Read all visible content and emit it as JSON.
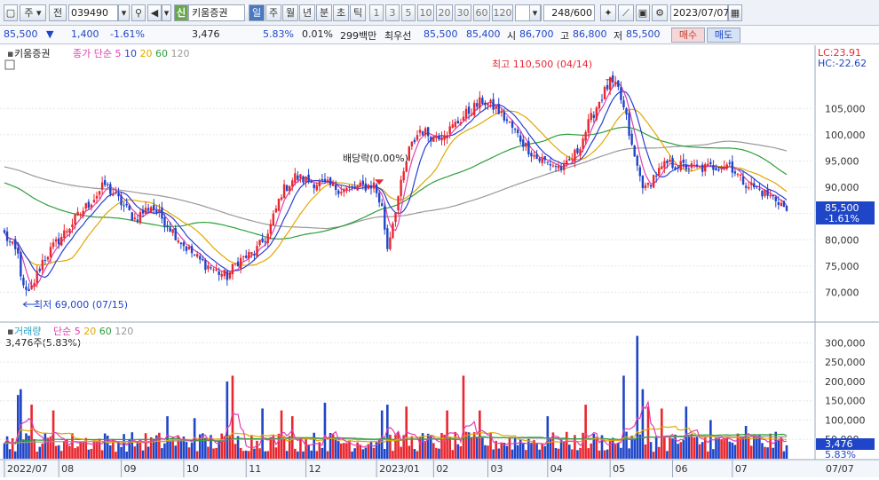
{
  "toolbar": {
    "market": "주",
    "prev_label": "전",
    "code": "039490",
    "badge": "신",
    "name": "키움증권",
    "period_tabs": [
      "일",
      "주",
      "월",
      "년",
      "분",
      "초",
      "틱"
    ],
    "active_tab": "일",
    "intervals": [
      "1",
      "3",
      "5",
      "10",
      "20",
      "30",
      "60",
      "120"
    ],
    "count": "248",
    "count_total": "/600",
    "date": "2023/07/07"
  },
  "quote": {
    "price": "85,500",
    "change_arrow": "▼",
    "change": "1,400",
    "change_pct": "-1.61%",
    "volume": "3,476",
    "vol_ratio": "5.83%",
    "turnover": "0.01%",
    "amount": "299백만",
    "best_label": "최우선",
    "best_ask": "85,500",
    "best_bid": "85,400",
    "open_label": "시",
    "open": "86,700",
    "high_label": "고",
    "high": "86,800",
    "low_label": "저",
    "low": "85,500",
    "buy_button": "매수",
    "sell_button": "매도"
  },
  "colors": {
    "up": "#e8272f",
    "down": "#1f45c8",
    "ma5": "#e040b0",
    "ma10": "#2a3fd0",
    "ma20": "#e0a800",
    "ma60": "#2e9e3a",
    "ma120": "#999999"
  },
  "price_panel": {
    "title": "키움증권",
    "legend": [
      {
        "text": "종가",
        "color": "#e040b0"
      },
      {
        "text": "단순",
        "color": "#e040b0"
      },
      {
        "text": "5",
        "color": "#e040b0"
      },
      {
        "text": "10",
        "color": "#2a3fd0"
      },
      {
        "text": "20",
        "color": "#e0a800"
      },
      {
        "text": "60",
        "color": "#2e9e3a"
      },
      {
        "text": "120",
        "color": "#999999"
      }
    ],
    "lc": "LC:23.91",
    "hc": "HC:-22.62",
    "high_annotation": "최고 110,500 (04/14)",
    "low_annotation": "최저 69,000 (07/15)",
    "dividend_annotation": "배당락(0.00%)",
    "current_price_tag": "85,500",
    "current_change_tag": "-1.61%"
  },
  "volume_panel": {
    "title": "거래량",
    "legend": [
      {
        "text": "단순",
        "color": "#e040b0"
      },
      {
        "text": "5",
        "color": "#e040b0"
      },
      {
        "text": "20",
        "color": "#e0a800"
      },
      {
        "text": "60",
        "color": "#2e9e3a"
      },
      {
        "text": "120",
        "color": "#999999"
      }
    ],
    "current": "3,476주(5.83%)",
    "current_tag": "3,476",
    "pct_tag": "5.83%"
  },
  "chart_data": [
    {
      "type": "candlestick",
      "title": "키움증권",
      "ylim": [
        65000,
        113000
      ],
      "y_ticks": [
        70000,
        75000,
        80000,
        85000,
        90000,
        95000,
        100000,
        105000
      ],
      "y_tick_labels": [
        "70,000",
        "75,000",
        "80,000",
        "85,000",
        "90,000",
        "95,000",
        "100,000",
        "105,000"
      ],
      "x_labels": [
        "2022/07",
        "08",
        "09",
        "10",
        "11",
        "12",
        "2023/01",
        "02",
        "03",
        "04",
        "05",
        "06",
        "07",
        "07/07"
      ],
      "close_path": [
        [
          0,
          81000
        ],
        [
          5,
          77000
        ],
        [
          7,
          70500
        ],
        [
          9,
          69500
        ],
        [
          14,
          76000
        ],
        [
          20,
          80000
        ],
        [
          27,
          84500
        ],
        [
          33,
          88000
        ],
        [
          37,
          90500
        ],
        [
          43,
          87000
        ],
        [
          48,
          84000
        ],
        [
          54,
          86500
        ],
        [
          60,
          83000
        ],
        [
          66,
          79000
        ],
        [
          72,
          76000
        ],
        [
          78,
          74000
        ],
        [
          82,
          73000
        ],
        [
          86,
          76000
        ],
        [
          92,
          77500
        ],
        [
          97,
          81000
        ],
        [
          102,
          89000
        ],
        [
          107,
          92000
        ],
        [
          113,
          91000
        ],
        [
          118,
          90500
        ],
        [
          125,
          89500
        ],
        [
          131,
          90000
        ],
        [
          136,
          90500
        ],
        [
          139,
          86000
        ],
        [
          141,
          78500
        ],
        [
          144,
          86000
        ],
        [
          149,
          97000
        ],
        [
          153,
          101000
        ],
        [
          158,
          99500
        ],
        [
          164,
          101000
        ],
        [
          170,
          104000
        ],
        [
          176,
          106500
        ],
        [
          181,
          105000
        ],
        [
          186,
          102000
        ],
        [
          191,
          98500
        ],
        [
          196,
          95500
        ],
        [
          201,
          94500
        ],
        [
          206,
          93500
        ],
        [
          211,
          97000
        ],
        [
          215,
          102000
        ],
        [
          219,
          106500
        ],
        [
          223,
          110000
        ],
        [
          226,
          108500
        ],
        [
          229,
          103000
        ],
        [
          231,
          97500
        ],
        [
          234,
          92000
        ],
        [
          236,
          89500
        ],
        [
          239,
          92000
        ],
        [
          244,
          94500
        ],
        [
          250,
          94000
        ],
        [
          256,
          93500
        ],
        [
          262,
          94000
        ],
        [
          267,
          94500
        ],
        [
          271,
          91500
        ],
        [
          276,
          90000
        ],
        [
          281,
          88500
        ],
        [
          285,
          87500
        ],
        [
          288,
          85500
        ]
      ],
      "ma_start_values": {
        "ma60": 91000,
        "ma120": 94000
      },
      "annotations": {
        "high": {
          "value": 110500,
          "date": "04/14"
        },
        "low": {
          "value": 69000,
          "date": "07/15"
        },
        "last": {
          "value": 85500,
          "change_pct": "-1.61%"
        }
      }
    },
    {
      "type": "bar",
      "title": "거래량",
      "ylim": [
        0,
        340000
      ],
      "y_ticks": [
        50000,
        100000,
        150000,
        200000,
        250000,
        300000
      ],
      "y_tick_labels": [
        "50,000",
        "100,000",
        "150,000",
        "200,000",
        "250,000",
        "300,000"
      ],
      "spikes": [
        [
          5,
          165000
        ],
        [
          6,
          180000
        ],
        [
          10,
          140000
        ],
        [
          18,
          125000
        ],
        [
          60,
          110000
        ],
        [
          70,
          105000
        ],
        [
          82,
          200000
        ],
        [
          84,
          215000
        ],
        [
          95,
          130000
        ],
        [
          102,
          125000
        ],
        [
          106,
          110000
        ],
        [
          118,
          145000
        ],
        [
          139,
          125000
        ],
        [
          141,
          140000
        ],
        [
          148,
          135000
        ],
        [
          163,
          125000
        ],
        [
          169,
          215000
        ],
        [
          175,
          125000
        ],
        [
          200,
          110000
        ],
        [
          214,
          140000
        ],
        [
          228,
          215000
        ],
        [
          233,
          318000
        ],
        [
          235,
          180000
        ],
        [
          237,
          135000
        ],
        [
          242,
          130000
        ],
        [
          251,
          135000
        ],
        [
          260,
          100000
        ],
        [
          273,
          85000
        ]
      ],
      "last_value": 3476
    }
  ]
}
